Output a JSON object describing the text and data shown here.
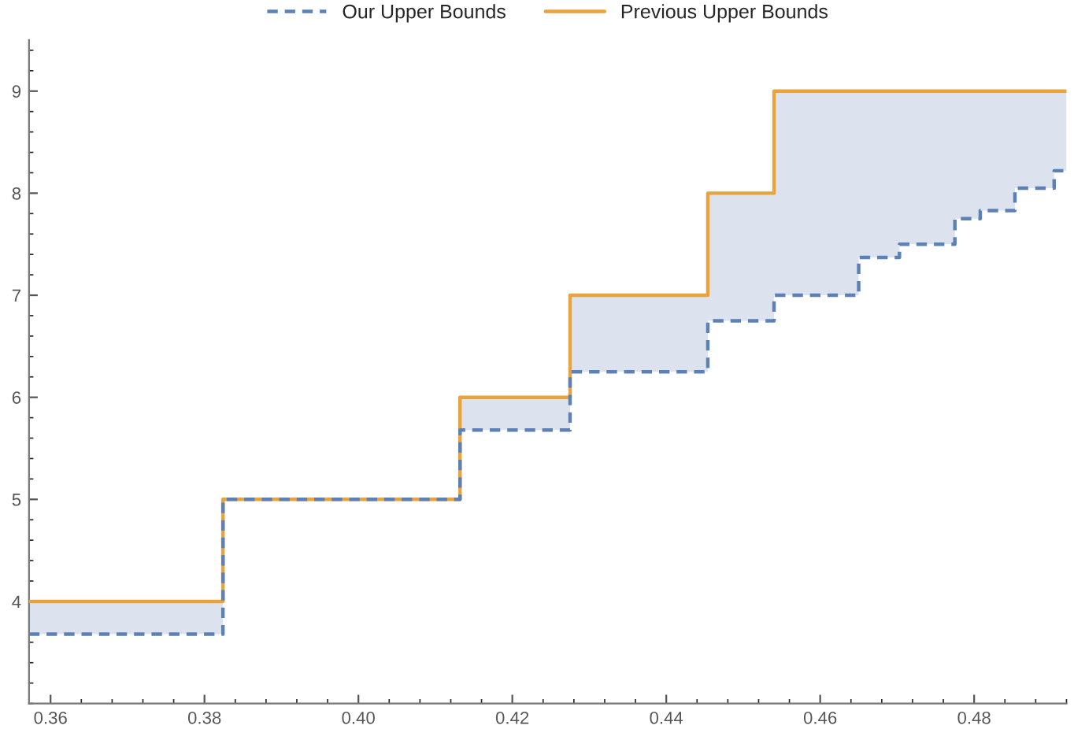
{
  "chart_data": {
    "type": "step",
    "series": [
      {
        "name": "Our Upper Bounds",
        "color": "#5e81b5",
        "line_style": "dashed",
        "x": [
          0.3572,
          0.3824,
          0.4132,
          0.4275,
          0.4454,
          0.454,
          0.465,
          0.4703,
          0.4775,
          0.4808,
          0.4853,
          0.4904,
          0.492
        ],
        "values": [
          3.68,
          5,
          5.68,
          6.25,
          6.75,
          7,
          7.37,
          7.5,
          7.75,
          7.83,
          8.05,
          8.22,
          8.22
        ],
        "lower": [
          3.68,
          5,
          5.68,
          6.25,
          6.75,
          7,
          7.37,
          7.5,
          7.75,
          7.83,
          8.05,
          8.22,
          8.22
        ],
        "upper": [
          4,
          5,
          6,
          7,
          8,
          9,
          9,
          9,
          9,
          9,
          9,
          9,
          9
        ]
      },
      {
        "name": "Previous Upper Bounds",
        "color": "#e8a33d",
        "line_style": "solid",
        "x": [
          0.3572,
          0.3824,
          0.4132,
          0.4275,
          0.4454,
          0.454,
          0.492
        ],
        "values": [
          4,
          5,
          6,
          7,
          8,
          9,
          9
        ]
      }
    ],
    "xlim": [
      0.3572,
      0.492
    ],
    "ylim": [
      3.0,
      9.5
    ],
    "xticks": [
      {
        "value": 0.36,
        "label": "0.36"
      },
      {
        "value": 0.38,
        "label": "0.38"
      },
      {
        "value": 0.4,
        "label": "0.40"
      },
      {
        "value": 0.42,
        "label": "0.42"
      },
      {
        "value": 0.44,
        "label": "0.44"
      },
      {
        "value": 0.46,
        "label": "0.46"
      },
      {
        "value": 0.48,
        "label": "0.48"
      }
    ],
    "yticks": [
      4,
      5,
      6,
      7,
      8,
      9
    ],
    "legend": "top",
    "grid": false
  }
}
